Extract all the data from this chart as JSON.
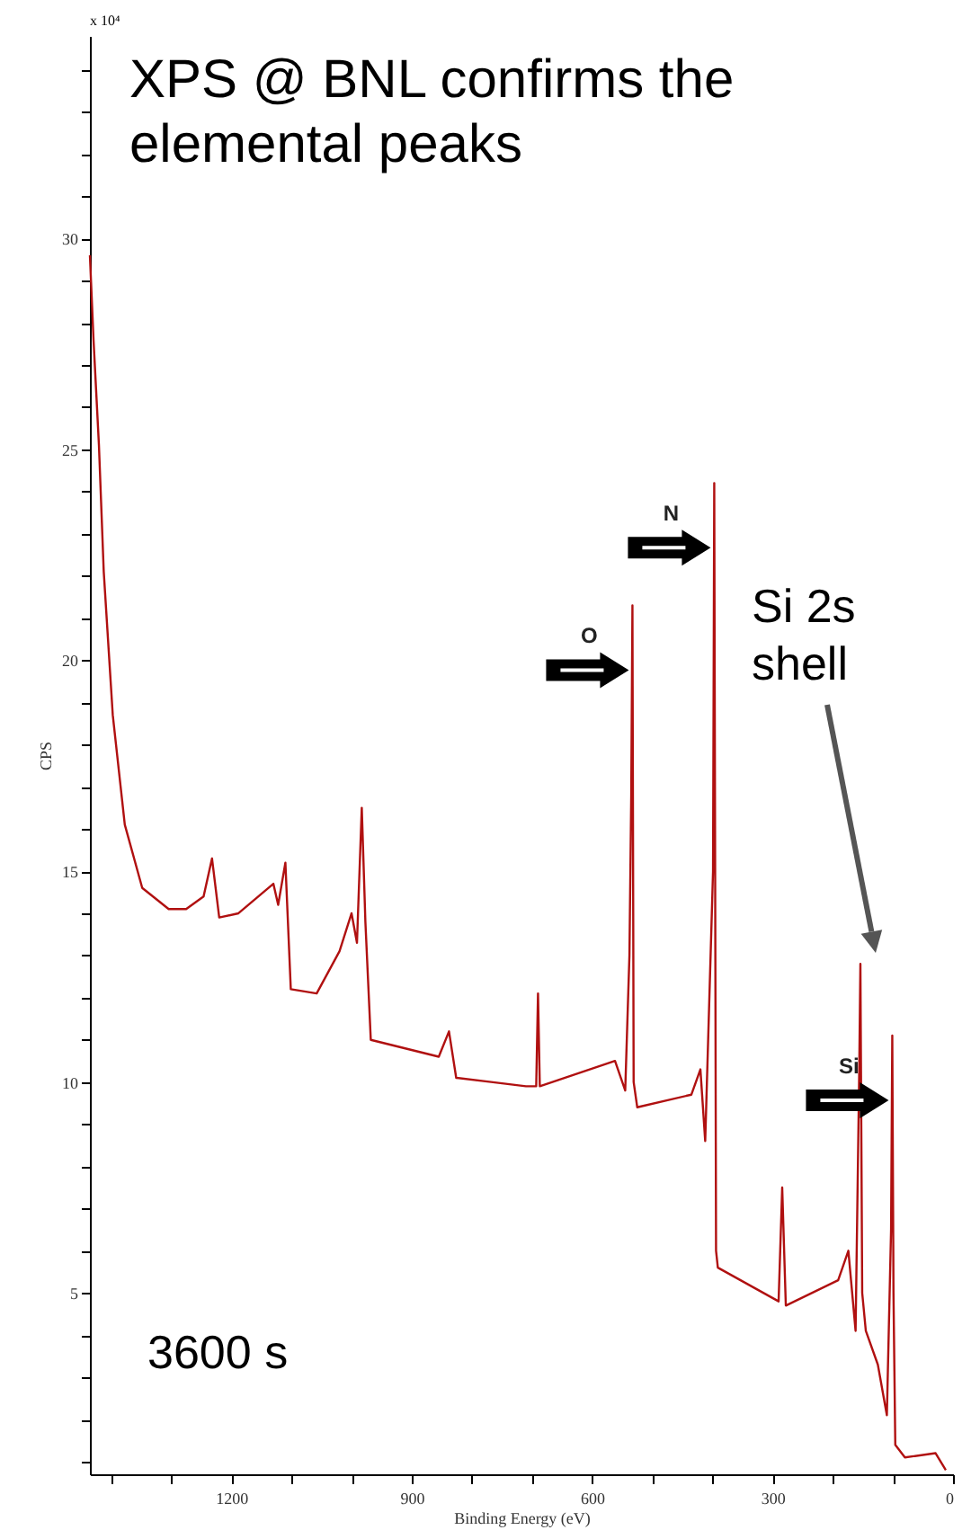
{
  "chart_data": {
    "type": "line",
    "title": "XPS @ BNL confirms the elemental peaks",
    "xlabel": "Binding Energy (eV)",
    "ylabel": "CPS",
    "annotations": [
      "3600 s",
      "x 10⁴",
      "Si 2s shell",
      {
        "text": "O",
        "x": 533,
        "y": 21.3
      },
      {
        "text": "N",
        "x": 397,
        "y": 24.2
      },
      {
        "text": "Si",
        "x": 101,
        "y": 11.1
      }
    ],
    "x": [
      1435,
      1429,
      1420,
      1412,
      1397,
      1377,
      1348,
      1304,
      1275,
      1246,
      1232,
      1220,
      1188,
      1130,
      1122,
      1110,
      1101,
      1058,
      1020,
      1000,
      991,
      983,
      977,
      968,
      855,
      838,
      826,
      768,
      710,
      693,
      690,
      687,
      562,
      545,
      538,
      535,
      533,
      531,
      525,
      435,
      420,
      412,
      399,
      397,
      394,
      391,
      290,
      284,
      278,
      191,
      174,
      162,
      156,
      154,
      151,
      145,
      125,
      110,
      103,
      101,
      99,
      96,
      80,
      29,
      12
    ],
    "series": [
      {
        "color": "#b01010",
        "values": [
          29.6,
          27.6,
          25.1,
          22.1,
          18.7,
          16.1,
          14.6,
          14.1,
          14.1,
          14.4,
          15.3,
          13.9,
          14.0,
          14.7,
          14.2,
          15.2,
          12.2,
          12.1,
          13.1,
          14.0,
          13.3,
          16.5,
          13.8,
          11.0,
          10.6,
          11.2,
          10.1,
          10.0,
          9.9,
          9.9,
          12.1,
          9.9,
          10.5,
          9.8,
          13.0,
          16.8,
          21.3,
          10.0,
          9.4,
          9.7,
          10.3,
          8.6,
          15.0,
          24.2,
          6.0,
          5.6,
          4.8,
          7.5,
          4.7,
          5.3,
          6.0,
          4.1,
          10.2,
          12.8,
          5.0,
          4.1,
          3.3,
          2.1,
          6.5,
          11.1,
          5.0,
          1.4,
          1.1,
          1.2,
          0.8
        ]
      }
    ],
    "xlim": [
      1435,
      0
    ],
    "xticks": [
      {
        "value": 1400,
        "label": null
      },
      {
        "value": 1300,
        "label": null
      },
      1200,
      {
        "value": 1100,
        "label": null
      },
      {
        "value": 1000,
        "label": null
      },
      900,
      {
        "value": 800,
        "label": null
      },
      {
        "value": 700,
        "label": null
      },
      600,
      {
        "value": 500,
        "label": null
      },
      {
        "value": 400,
        "label": null
      },
      300,
      {
        "value": 200,
        "label": null
      },
      {
        "value": 100,
        "label": null
      },
      0
    ],
    "ylim": [
      0.7,
      34.8
    ],
    "yticks": [
      {
        "value": 1,
        "label": null
      },
      {
        "value": 2,
        "label": null
      },
      {
        "value": 3,
        "label": null
      },
      {
        "value": 4,
        "label": null
      },
      5,
      {
        "value": 6,
        "label": null
      },
      {
        "value": 7,
        "label": null
      },
      {
        "value": 8,
        "label": null
      },
      {
        "value": 9,
        "label": null
      },
      10,
      {
        "value": 11,
        "label": null
      },
      {
        "value": 12,
        "label": null
      },
      {
        "value": 13,
        "label": null
      },
      {
        "value": 14,
        "label": null
      },
      15,
      {
        "value": 16,
        "label": null
      },
      {
        "value": 17,
        "label": null
      },
      {
        "value": 18,
        "label": null
      },
      {
        "value": 19,
        "label": null
      },
      20,
      {
        "value": 21,
        "label": null
      },
      {
        "value": 22,
        "label": null
      },
      {
        "value": 23,
        "label": null
      },
      {
        "value": 24,
        "label": null
      },
      25,
      {
        "value": 26,
        "label": null
      },
      {
        "value": 27,
        "label": null
      },
      {
        "value": 28,
        "label": null
      },
      {
        "value": 29,
        "label": null
      },
      30,
      {
        "value": 31,
        "label": null
      },
      {
        "value": 32,
        "label": null
      },
      {
        "value": 33,
        "label": null
      },
      {
        "value": 34,
        "label": null
      }
    ],
    "line_style": "solid"
  }
}
